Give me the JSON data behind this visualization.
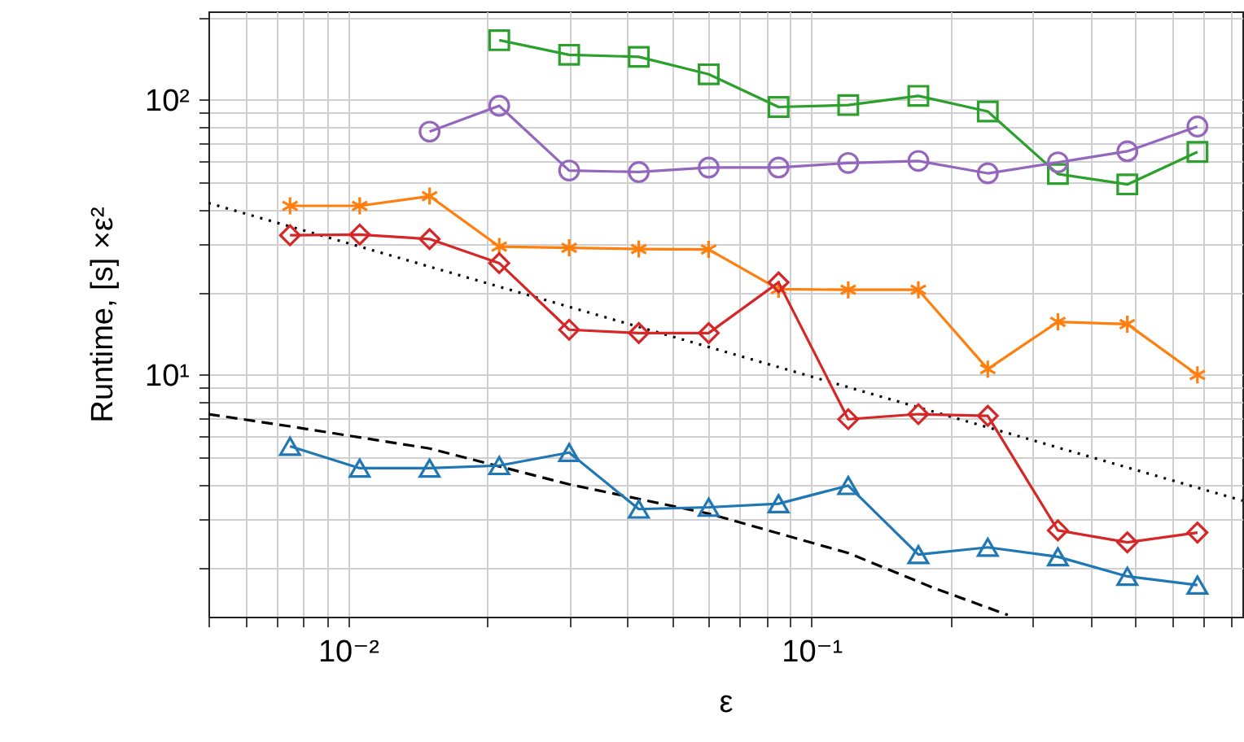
{
  "chart_data": {
    "type": "line",
    "xlabel": "ε",
    "ylabel": "Runtime, [s] ×ε²",
    "log": "xy",
    "grid": true,
    "x": [
      0.0075,
      0.0106,
      0.015,
      0.0212,
      0.03,
      0.0424,
      0.06,
      0.0849,
      0.12,
      0.17,
      0.24,
      0.34,
      0.48,
      0.68
    ],
    "xlim": [
      0.005,
      0.85
    ],
    "xticks": [
      {
        "value": 0.005,
        "label": null
      },
      {
        "value": 0.006,
        "label": null
      },
      {
        "value": 0.007,
        "label": null
      },
      {
        "value": 0.008,
        "label": null
      },
      {
        "value": 0.009,
        "label": null
      },
      {
        "value": 0.01,
        "label": "10⁻²"
      },
      {
        "value": 0.02,
        "label": null
      },
      {
        "value": 0.03,
        "label": null
      },
      {
        "value": 0.04,
        "label": null
      },
      {
        "value": 0.05,
        "label": null
      },
      {
        "value": 0.06,
        "label": null
      },
      {
        "value": 0.07,
        "label": null
      },
      {
        "value": 0.08,
        "label": null
      },
      {
        "value": 0.09,
        "label": null
      },
      {
        "value": 0.1,
        "label": "10⁻¹"
      },
      {
        "value": 0.2,
        "label": null
      },
      {
        "value": 0.3,
        "label": null
      },
      {
        "value": 0.4,
        "label": null
      },
      {
        "value": 0.5,
        "label": null
      },
      {
        "value": 0.6,
        "label": null
      },
      {
        "value": 0.7,
        "label": null
      },
      {
        "value": 0.8,
        "label": null
      }
    ],
    "ylim": [
      1.32,
      210
    ],
    "yticks": [
      {
        "value": 2,
        "label": null
      },
      {
        "value": 3,
        "label": null
      },
      {
        "value": 4,
        "label": null
      },
      {
        "value": 5,
        "label": null
      },
      {
        "value": 6,
        "label": null
      },
      {
        "value": 7,
        "label": null
      },
      {
        "value": 8,
        "label": null
      },
      {
        "value": 9,
        "label": null
      },
      {
        "value": 10,
        "label": "10¹"
      },
      {
        "value": 20,
        "label": null
      },
      {
        "value": 30,
        "label": null
      },
      {
        "value": 40,
        "label": null
      },
      {
        "value": 50,
        "label": null
      },
      {
        "value": 60,
        "label": null
      },
      {
        "value": 70,
        "label": null
      },
      {
        "value": 80,
        "label": null
      },
      {
        "value": 90,
        "label": null
      },
      {
        "value": 100,
        "label": "10²"
      },
      {
        "value": 200,
        "label": null
      }
    ],
    "series": [
      {
        "color": "#000000",
        "marker": "none",
        "line_style": "dashed",
        "x": [
          0.005,
          0.0075,
          0.015,
          0.03,
          0.06,
          0.12,
          0.185,
          0.265
        ],
        "values": [
          7.2,
          6.5,
          5.4,
          4.0,
          3.13,
          2.25,
          1.67,
          1.34
        ]
      },
      {
        "color": "#000000",
        "marker": "none",
        "line_style": "dotted",
        "x": [
          0.005,
          0.85
        ],
        "values": [
          42.2,
          3.49
        ]
      },
      {
        "color": "#1f77b4",
        "marker": "triangle",
        "line_style": "solid",
        "values": [
          5.5,
          4.58,
          4.58,
          4.68,
          5.22,
          3.25,
          3.3,
          3.4,
          3.96,
          2.22,
          2.36,
          2.18,
          1.85,
          1.72
        ]
      },
      {
        "color": "#ff7f0e",
        "marker": "cross",
        "line_style": "solid",
        "values": [
          41.2,
          41.2,
          44.7,
          29.3,
          29.0,
          28.7,
          28.6,
          20.5,
          20.4,
          20.4,
          10.5,
          15.6,
          15.3,
          10.0
        ]
      },
      {
        "color": "#d62728",
        "marker": "diamond",
        "line_style": "solid",
        "values": [
          32.2,
          32.4,
          31.2,
          25.5,
          14.6,
          14.2,
          14.2,
          21.7,
          6.9,
          7.2,
          7.1,
          2.72,
          2.46,
          2.67
        ]
      },
      {
        "color": "#2ca02c",
        "marker": "square",
        "line_style": "solid",
        "values": [
          null,
          null,
          null,
          165,
          146,
          143.5,
          124,
          94.3,
          95.8,
          103.5,
          90.8,
          53.8,
          49.3,
          64.7
        ]
      },
      {
        "color": "#9467bd",
        "marker": "circle",
        "line_style": "solid",
        "values": [
          null,
          null,
          76.7,
          95.3,
          55.4,
          54.7,
          56.8,
          56.8,
          59,
          60,
          54.1,
          59.3,
          65.1,
          80.1
        ]
      }
    ]
  }
}
